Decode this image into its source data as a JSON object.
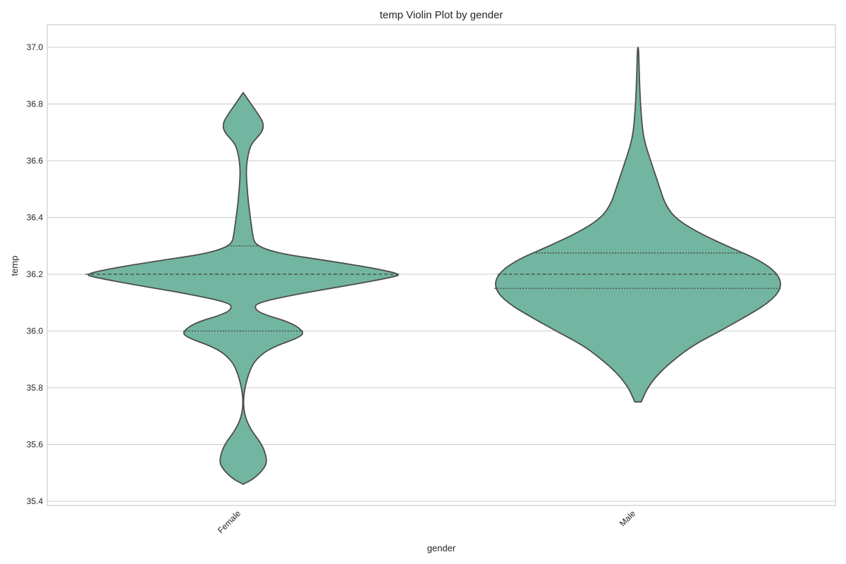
{
  "chart_data": {
    "type": "violin",
    "title": "temp Violin Plot by gender",
    "xlabel": "gender",
    "ylabel": "temp",
    "categories": [
      "Female",
      "Male"
    ],
    "ylim": [
      35.37,
      37.08
    ],
    "yticks": [
      35.4,
      35.6,
      35.8,
      36.0,
      36.2,
      36.4,
      36.6,
      36.8,
      37.0
    ],
    "grid": true,
    "color": "#72b5a1",
    "series": [
      {
        "category": "Female",
        "min": 35.46,
        "max": 36.84,
        "quartiles": [
          36.0,
          36.2,
          36.3
        ],
        "density": [
          [
            35.46,
            0.0
          ],
          [
            35.48,
            0.07
          ],
          [
            35.52,
            0.14
          ],
          [
            35.55,
            0.15
          ],
          [
            35.6,
            0.12
          ],
          [
            35.65,
            0.05
          ],
          [
            35.7,
            0.01
          ],
          [
            35.75,
            0.0
          ],
          [
            35.8,
            0.01
          ],
          [
            35.86,
            0.04
          ],
          [
            35.9,
            0.08
          ],
          [
            35.94,
            0.17
          ],
          [
            35.98,
            0.37
          ],
          [
            36.0,
            0.38
          ],
          [
            36.03,
            0.3
          ],
          [
            36.06,
            0.12
          ],
          [
            36.08,
            0.07
          ],
          [
            36.1,
            0.09
          ],
          [
            36.13,
            0.34
          ],
          [
            36.16,
            0.66
          ],
          [
            36.19,
            0.95
          ],
          [
            36.2,
            1.0
          ],
          [
            36.22,
            0.84
          ],
          [
            36.25,
            0.51
          ],
          [
            36.27,
            0.26
          ],
          [
            36.29,
            0.13
          ],
          [
            36.31,
            0.07
          ],
          [
            36.34,
            0.06
          ],
          [
            36.38,
            0.05
          ],
          [
            36.42,
            0.04
          ],
          [
            36.47,
            0.03
          ],
          [
            36.54,
            0.02
          ],
          [
            36.58,
            0.02
          ],
          [
            36.62,
            0.03
          ],
          [
            36.66,
            0.05
          ],
          [
            36.7,
            0.12
          ],
          [
            36.73,
            0.13
          ],
          [
            36.76,
            0.1
          ],
          [
            36.8,
            0.05
          ],
          [
            36.84,
            0.0
          ]
        ]
      },
      {
        "category": "Male",
        "min": 35.75,
        "max": 37.0,
        "quartiles": [
          36.15,
          36.2,
          36.275
        ],
        "density": [
          [
            35.75,
            0.02
          ],
          [
            35.8,
            0.06
          ],
          [
            35.85,
            0.13
          ],
          [
            35.9,
            0.23
          ],
          [
            35.95,
            0.35
          ],
          [
            36.0,
            0.52
          ],
          [
            36.05,
            0.68
          ],
          [
            36.1,
            0.83
          ],
          [
            36.15,
            0.91
          ],
          [
            36.2,
            0.89
          ],
          [
            36.25,
            0.77
          ],
          [
            36.3,
            0.56
          ],
          [
            36.35,
            0.37
          ],
          [
            36.4,
            0.23
          ],
          [
            36.45,
            0.17
          ],
          [
            36.5,
            0.14
          ],
          [
            36.55,
            0.11
          ],
          [
            36.6,
            0.08
          ],
          [
            36.65,
            0.05
          ],
          [
            36.7,
            0.03
          ],
          [
            36.8,
            0.015
          ],
          [
            36.9,
            0.008
          ],
          [
            37.0,
            0.004
          ]
        ]
      }
    ]
  }
}
